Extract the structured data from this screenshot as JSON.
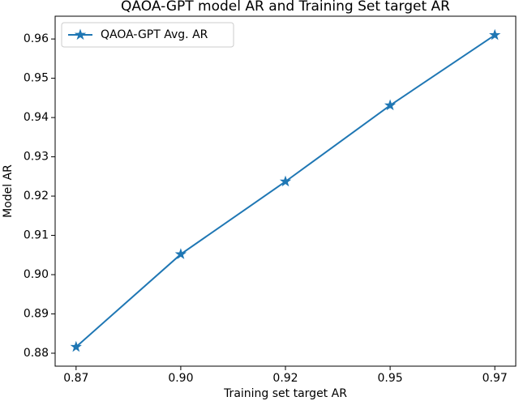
{
  "chart_data": {
    "type": "line",
    "title": "QAOA-GPT model AR and Training Set target AR",
    "x_label": "Training set target AR",
    "y_label": "Model AR",
    "categories": [
      "0.87",
      "0.90",
      "0.92",
      "0.95",
      "0.97"
    ],
    "series": [
      {
        "name": "QAOA-GPT Avg. AR",
        "color": "#1f77b4",
        "marker": "star",
        "values": [
          0.8816,
          0.9052,
          0.9237,
          0.9431,
          0.961
        ]
      }
    ],
    "ylim": [
      0.8767,
      0.9658
    ],
    "yticks": [
      0.88,
      0.89,
      {
        "value": 0.9,
        "label": "0.90"
      },
      0.91,
      0.92,
      0.93,
      0.94,
      0.95,
      0.96
    ],
    "grid": false,
    "legend": "upper left"
  }
}
